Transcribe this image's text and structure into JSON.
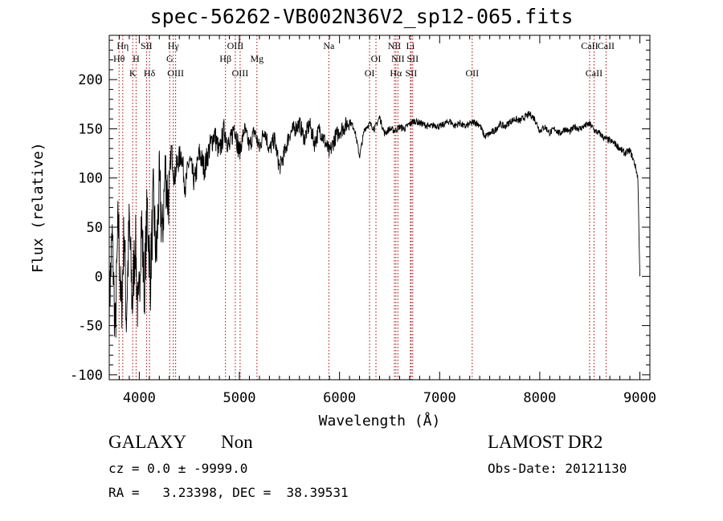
{
  "chart_data": {
    "type": "line",
    "title": "spec-56262-VB002N36V2_sp12-065.fits",
    "xlabel": "Wavelength (Å)",
    "ylabel": "Flux (relative)",
    "xlim": [
      3700,
      9100
    ],
    "ylim": [
      -105,
      245
    ],
    "xticks": [
      4000,
      5000,
      6000,
      7000,
      8000,
      9000
    ],
    "yticks": [
      -100,
      -50,
      0,
      50,
      100,
      150,
      200
    ],
    "grid": false,
    "series": [
      {
        "values": [
          [
            3700,
            -30
          ],
          [
            3730,
            40
          ],
          [
            3760,
            -60
          ],
          [
            3790,
            60
          ],
          [
            3820,
            -40
          ],
          [
            3850,
            50
          ],
          [
            3870,
            -45
          ],
          [
            3900,
            55
          ],
          [
            3930,
            -30
          ],
          [
            3960,
            40
          ],
          [
            3990,
            -50
          ],
          [
            4020,
            60
          ],
          [
            4050,
            -15
          ],
          [
            4080,
            70
          ],
          [
            4110,
            -5
          ],
          [
            4140,
            80
          ],
          [
            4170,
            15
          ],
          [
            4200,
            95
          ],
          [
            4230,
            40
          ],
          [
            4260,
            110
          ],
          [
            4290,
            75
          ],
          [
            4320,
            130
          ],
          [
            4350,
            100
          ],
          [
            4380,
            115
          ],
          [
            4420,
            125
          ],
          [
            4460,
            90
          ],
          [
            4500,
            120
          ],
          [
            4550,
            95
          ],
          [
            4600,
            125
          ],
          [
            4650,
            110
          ],
          [
            4700,
            130
          ],
          [
            4750,
            145
          ],
          [
            4800,
            125
          ],
          [
            4850,
            150
          ],
          [
            4900,
            130
          ],
          [
            4950,
            155
          ],
          [
            5000,
            125
          ],
          [
            5050,
            150
          ],
          [
            5100,
            132
          ],
          [
            5150,
            148
          ],
          [
            5200,
            130
          ],
          [
            5250,
            150
          ],
          [
            5300,
            128
          ],
          [
            5350,
            140
          ],
          [
            5400,
            110
          ],
          [
            5450,
            125
          ],
          [
            5500,
            145
          ],
          [
            5550,
            150
          ],
          [
            5600,
            155
          ],
          [
            5650,
            140
          ],
          [
            5700,
            155
          ],
          [
            5750,
            135
          ],
          [
            5800,
            150
          ],
          [
            5850,
            138
          ],
          [
            5900,
            125
          ],
          [
            5950,
            140
          ],
          [
            6000,
            148
          ],
          [
            6050,
            152
          ],
          [
            6100,
            158
          ],
          [
            6150,
            150
          ],
          [
            6200,
            122
          ],
          [
            6250,
            150
          ],
          [
            6300,
            155
          ],
          [
            6350,
            150
          ],
          [
            6400,
            162
          ],
          [
            6450,
            145
          ],
          [
            6500,
            150
          ],
          [
            6550,
            148
          ],
          [
            6600,
            152
          ],
          [
            6650,
            150
          ],
          [
            6700,
            155
          ],
          [
            6750,
            158
          ],
          [
            6800,
            156
          ],
          [
            6850,
            154
          ],
          [
            6900,
            152
          ],
          [
            6950,
            154
          ],
          [
            7000,
            152
          ],
          [
            7050,
            155
          ],
          [
            7100,
            158
          ],
          [
            7150,
            153
          ],
          [
            7200,
            156
          ],
          [
            7250,
            152
          ],
          [
            7300,
            155
          ],
          [
            7350,
            157
          ],
          [
            7400,
            154
          ],
          [
            7450,
            142
          ],
          [
            7500,
            145
          ],
          [
            7550,
            148
          ],
          [
            7600,
            155
          ],
          [
            7650,
            152
          ],
          [
            7700,
            157
          ],
          [
            7750,
            160
          ],
          [
            7800,
            158
          ],
          [
            7850,
            162
          ],
          [
            7900,
            165
          ],
          [
            7950,
            160
          ],
          [
            8000,
            148
          ],
          [
            8050,
            152
          ],
          [
            8100,
            146
          ],
          [
            8150,
            150
          ],
          [
            8200,
            145
          ],
          [
            8250,
            150
          ],
          [
            8300,
            147
          ],
          [
            8350,
            152
          ],
          [
            8400,
            150
          ],
          [
            8450,
            153
          ],
          [
            8500,
            155
          ],
          [
            8550,
            148
          ],
          [
            8600,
            145
          ],
          [
            8650,
            140
          ],
          [
            8700,
            138
          ],
          [
            8750,
            135
          ],
          [
            8800,
            130
          ],
          [
            8850,
            125
          ],
          [
            8900,
            128
          ],
          [
            8930,
            120
          ],
          [
            8960,
            110
          ],
          [
            8980,
            100
          ],
          [
            8990,
            50
          ],
          [
            9000,
            0
          ]
        ]
      }
    ],
    "lines": [
      {
        "label": "Hη",
        "x": 3835,
        "row": 0
      },
      {
        "label": "Hθ",
        "x": 3798,
        "row": 1
      },
      {
        "label": "H",
        "x": 3968,
        "row": 1
      },
      {
        "label": "K",
        "x": 3934,
        "row": 2
      },
      {
        "label": "SII",
        "x": 4072,
        "row": 0
      },
      {
        "label": "Hδ",
        "x": 4102,
        "row": 2
      },
      {
        "label": "Hγ",
        "x": 4340,
        "row": 0
      },
      {
        "label": "G",
        "x": 4304,
        "row": 1
      },
      {
        "label": "OIII",
        "x": 4363,
        "row": 2
      },
      {
        "label": "Hβ",
        "x": 4861,
        "row": 1
      },
      {
        "label": "OIII",
        "x": 4959,
        "row": 0
      },
      {
        "label": "OIII",
        "x": 5007,
        "row": 2
      },
      {
        "label": "Mg",
        "x": 5175,
        "row": 1
      },
      {
        "label": "Na",
        "x": 5893,
        "row": 0
      },
      {
        "label": "OI",
        "x": 6300,
        "row": 2
      },
      {
        "label": "OI",
        "x": 6364,
        "row": 1
      },
      {
        "label": "NII",
        "x": 6548,
        "row": 0
      },
      {
        "label": "Hα",
        "x": 6563,
        "row": 2
      },
      {
        "label": "NII",
        "x": 6583,
        "row": 1
      },
      {
        "label": "Li",
        "x": 6708,
        "row": 0
      },
      {
        "label": "SII",
        "x": 6716,
        "row": 2
      },
      {
        "label": "SII",
        "x": 6731,
        "row": 1
      },
      {
        "label": "OII",
        "x": 7325,
        "row": 2
      },
      {
        "label": "CaII",
        "x": 8498,
        "row": 0
      },
      {
        "label": "CaII",
        "x": 8542,
        "row": 2
      },
      {
        "label": "CaII",
        "x": 8662,
        "row": 0
      }
    ]
  },
  "info": {
    "class": "GALAXY",
    "subclass": "Non",
    "survey": "LAMOST DR2",
    "cz": "cz = 0.0 ± -9999.0",
    "obs_date": "Obs-Date: 20121130",
    "coords": "RA =   3.23398, DEC =  38.39531"
  }
}
